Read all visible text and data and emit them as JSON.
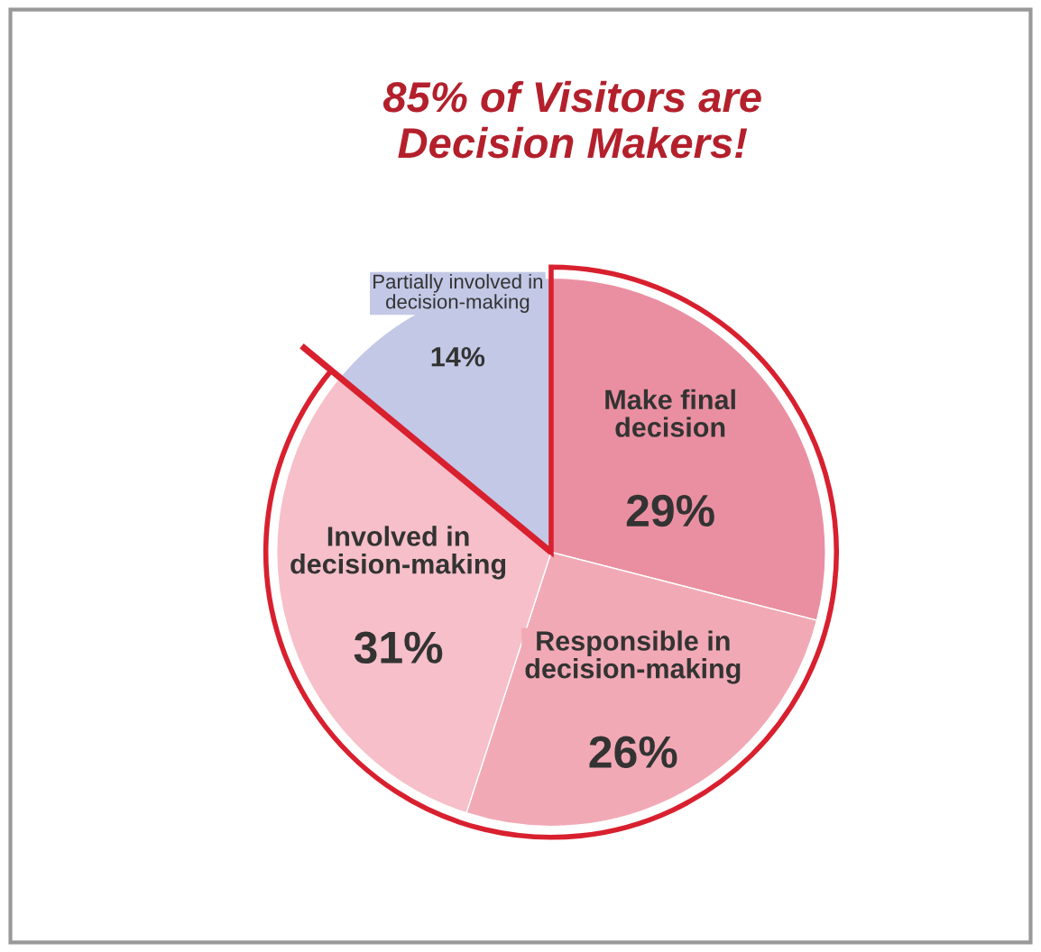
{
  "chart_data": {
    "type": "pie",
    "title": "85% of Visitors are Decision Makers!",
    "categories": [
      "Make final decision",
      "Responsible in decision-making",
      "Involved in decision-making",
      "Partially involved in decision-making"
    ],
    "values": [
      29,
      26,
      31,
      14
    ],
    "value_labels": [
      "29%",
      "26%",
      "31%",
      "14%"
    ],
    "colors": [
      "#ea8fa1",
      "#f2a9b6",
      "#f6bfc9",
      "#c3c8e6"
    ],
    "legend": false
  }
}
